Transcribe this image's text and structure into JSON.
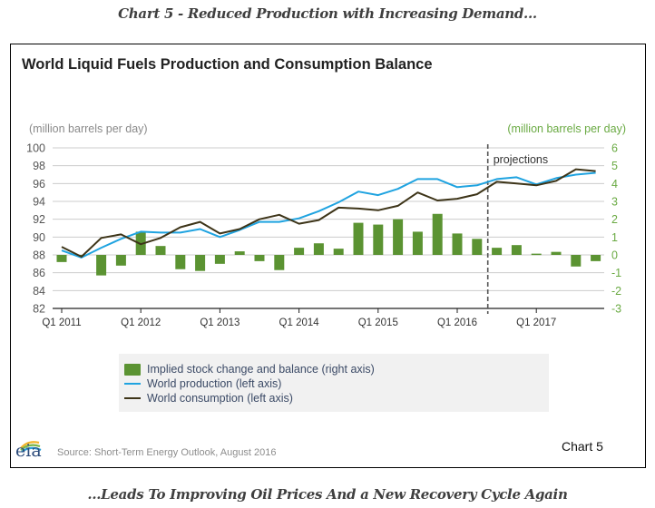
{
  "page": {
    "top_heading": "Chart 5 - Reduced Production with Increasing Demand...",
    "bottom_heading": "...Leads To Improving Oil Prices And a New Recovery Cycle Again",
    "chart_label": "Chart 5",
    "source": "Source: Short-Term Energy Outlook, August 2016",
    "logo_text": "eia"
  },
  "colors": {
    "bars": "#5b9332",
    "production": "#1fa3e0",
    "consumption": "#3d3418",
    "right_axis": "#6aaa43",
    "left_axis": "#555555",
    "grid": "#cccccc"
  },
  "chart_data": {
    "type": "bar+line",
    "title": "World Liquid Fuels Production and Consumption Balance",
    "ylabel_left": "(million barrels per day)",
    "ylabel_right": "(million barrels per day)",
    "ylim_left": [
      82,
      100
    ],
    "ylim_right": [
      -3,
      6
    ],
    "yticks_left": [
      "100",
      "98",
      "96",
      "94",
      "92",
      "90",
      "88",
      "86",
      "84",
      "82"
    ],
    "yticks_right": [
      "6",
      "5",
      "4",
      "3",
      "2",
      "1",
      "0",
      "-1",
      "-2",
      "-3"
    ],
    "xtick_labels": [
      "Q1 2011",
      "Q1 2012",
      "Q1 2013",
      "Q1 2014",
      "Q1 2015",
      "Q1 2016",
      "Q1 2017"
    ],
    "grid": true,
    "annotation": "projections",
    "projection_start": "Q3 2016",
    "categories": [
      "Q1 2011",
      "Q2 2011",
      "Q3 2011",
      "Q4 2011",
      "Q1 2012",
      "Q2 2012",
      "Q3 2012",
      "Q4 2012",
      "Q1 2013",
      "Q2 2013",
      "Q3 2013",
      "Q4 2013",
      "Q1 2014",
      "Q2 2014",
      "Q3 2014",
      "Q4 2014",
      "Q1 2015",
      "Q2 2015",
      "Q3 2015",
      "Q4 2015",
      "Q1 2016",
      "Q2 2016",
      "Q3 2016",
      "Q4 2016",
      "Q1 2017",
      "Q2 2017",
      "Q3 2017",
      "Q4 2017"
    ],
    "series": [
      {
        "name": "Implied stock change and balance (right axis)",
        "type": "bar",
        "axis": "right",
        "values": [
          -0.4,
          -0.05,
          -1.15,
          -0.6,
          1.3,
          0.5,
          -0.8,
          -0.9,
          -0.5,
          0.2,
          -0.35,
          -0.85,
          0.4,
          0.65,
          0.35,
          1.8,
          1.7,
          2.0,
          1.3,
          2.3,
          1.2,
          0.9,
          0.4,
          0.55,
          0.07,
          0.17,
          -0.65,
          -0.35
        ]
      },
      {
        "name": "World production (left axis)",
        "type": "line",
        "axis": "left",
        "values": [
          88.5,
          87.7,
          88.8,
          89.8,
          90.6,
          90.5,
          90.5,
          90.9,
          90.0,
          90.8,
          91.7,
          91.7,
          92.1,
          92.9,
          93.9,
          95.1,
          94.7,
          95.4,
          96.5,
          96.5,
          95.6,
          95.8,
          96.5,
          96.7,
          95.9,
          96.6,
          97.0,
          97.2
        ]
      },
      {
        "name": "World consumption (left axis)",
        "type": "line",
        "axis": "left",
        "values": [
          88.9,
          87.8,
          89.9,
          90.3,
          89.2,
          89.9,
          91.1,
          91.7,
          90.4,
          90.9,
          92.0,
          92.5,
          91.5,
          91.9,
          93.3,
          93.2,
          93.0,
          93.5,
          95.0,
          94.1,
          94.3,
          94.8,
          96.2,
          96.0,
          95.8,
          96.3,
          97.6,
          97.4
        ]
      }
    ],
    "legend": [
      "Implied stock change and balance (right axis)",
      "World production (left axis)",
      "World consumption (left axis)"
    ],
    "legend_placement": "bottom"
  }
}
